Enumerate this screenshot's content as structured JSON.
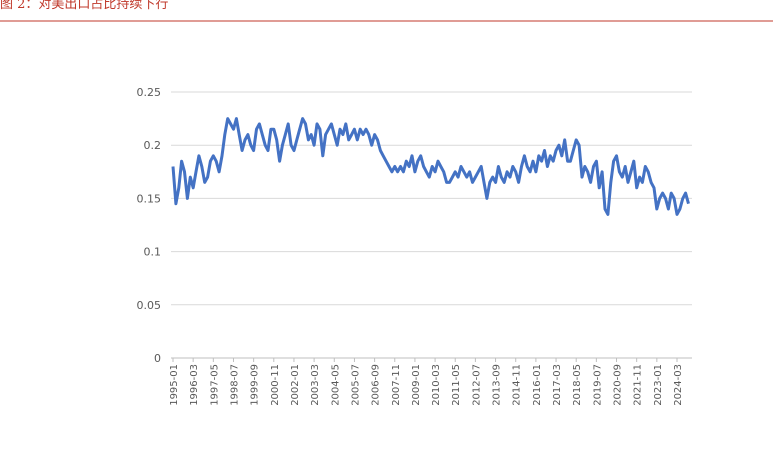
{
  "chart_data": {
    "type": "line",
    "title": "图 2：对美出口占比持续下行",
    "categories": [
      "1995-01",
      null,
      null,
      null,
      null,
      null,
      null,
      "1996-03",
      null,
      null,
      null,
      null,
      null,
      null,
      "1997-05",
      null,
      null,
      null,
      null,
      null,
      null,
      "1998-07",
      null,
      null,
      null,
      null,
      null,
      null,
      "1999-09",
      null,
      null,
      null,
      null,
      null,
      null,
      "2000-11",
      null,
      null,
      null,
      null,
      null,
      null,
      "2002-01",
      null,
      null,
      null,
      null,
      null,
      null,
      "2003-03",
      null,
      null,
      null,
      null,
      null,
      null,
      "2004-05",
      null,
      null,
      null,
      null,
      null,
      null,
      "2005-07",
      null,
      null,
      null,
      null,
      null,
      null,
      "2006-09",
      null,
      null,
      null,
      null,
      null,
      null,
      "2007-11",
      null,
      null,
      null,
      null,
      null,
      null,
      "2009-01",
      null,
      null,
      null,
      null,
      null,
      null,
      "2010-03",
      null,
      null,
      null,
      null,
      null,
      null,
      "2011-05",
      null,
      null,
      null,
      null,
      null,
      null,
      "2012-07",
      null,
      null,
      null,
      null,
      null,
      null,
      "2013-09",
      null,
      null,
      null,
      null,
      null,
      null,
      "2014-11",
      null,
      null,
      null,
      null,
      null,
      null,
      "2016-01",
      null,
      null,
      null,
      null,
      null,
      null,
      "2017-03",
      null,
      null,
      null,
      null,
      null,
      null,
      "2018-05",
      null,
      null,
      null,
      null,
      null,
      null,
      "2019-07",
      null,
      null,
      null,
      null,
      null,
      null,
      "2020-09",
      null,
      null,
      null,
      null,
      null,
      null,
      "2021-11",
      null,
      null,
      null,
      null,
      null,
      null,
      "2023-01",
      null,
      null,
      null,
      null,
      null,
      null,
      "2024-03",
      null,
      null,
      null,
      null
    ],
    "series": [
      {
        "color": "#4472c4",
        "values": [
          0.18,
          0.145,
          0.16,
          0.185,
          0.175,
          0.15,
          0.17,
          0.16,
          0.175,
          0.19,
          0.18,
          0.165,
          0.17,
          0.185,
          0.19,
          0.185,
          0.175,
          0.19,
          0.21,
          0.225,
          0.22,
          0.215,
          0.225,
          0.21,
          0.195,
          0.205,
          0.21,
          0.2,
          0.195,
          0.215,
          0.22,
          0.21,
          0.2,
          0.195,
          0.215,
          0.215,
          0.205,
          0.185,
          0.2,
          0.21,
          0.22,
          0.2,
          0.195,
          0.205,
          0.215,
          0.225,
          0.22,
          0.205,
          0.21,
          0.2,
          0.22,
          0.215,
          0.19,
          0.21,
          0.215,
          0.22,
          0.21,
          0.2,
          0.215,
          0.21,
          0.22,
          0.205,
          0.21,
          0.215,
          0.205,
          0.215,
          0.21,
          0.215,
          0.21,
          0.2,
          0.21,
          0.205,
          0.195,
          0.19,
          0.185,
          0.18,
          0.175,
          0.18,
          0.175,
          0.18,
          0.175,
          0.185,
          0.18,
          0.19,
          0.175,
          0.185,
          0.19,
          0.18,
          0.175,
          0.17,
          0.18,
          0.175,
          0.185,
          0.18,
          0.175,
          0.165,
          0.165,
          0.17,
          0.175,
          0.17,
          0.18,
          0.175,
          0.17,
          0.175,
          0.165,
          0.17,
          0.175,
          0.18,
          0.165,
          0.15,
          0.165,
          0.17,
          0.165,
          0.18,
          0.17,
          0.165,
          0.175,
          0.17,
          0.18,
          0.175,
          0.165,
          0.18,
          0.19,
          0.18,
          0.175,
          0.185,
          0.175,
          0.19,
          0.185,
          0.195,
          0.18,
          0.19,
          0.185,
          0.195,
          0.2,
          0.19,
          0.205,
          0.185,
          0.185,
          0.195,
          0.205,
          0.2,
          0.17,
          0.18,
          0.175,
          0.165,
          0.18,
          0.185,
          0.16,
          0.175,
          0.14,
          0.135,
          0.165,
          0.185,
          0.19,
          0.175,
          0.17,
          0.18,
          0.165,
          0.175,
          0.185,
          0.16,
          0.17,
          0.165,
          0.18,
          0.175,
          0.165,
          0.16,
          0.14,
          0.15,
          0.155,
          0.15,
          0.14,
          0.155,
          0.15,
          0.135,
          0.14,
          0.15,
          0.155,
          0.145
        ]
      }
    ],
    "ylim": [
      0,
      0.25
    ],
    "yticks": [
      0,
      0.05,
      0.1,
      0.15,
      0.2,
      0.25
    ],
    "grid": true
  }
}
